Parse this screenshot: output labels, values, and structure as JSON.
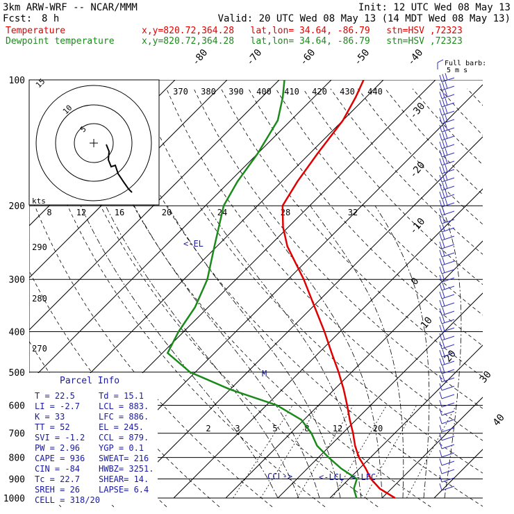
{
  "header": {
    "model": "3km ARW-WRF -- NCAR/MMM",
    "init": "Init: 12 UTC Wed 08 May 13",
    "fcst_label": "Fcst:",
    "fcst_value": "8 h",
    "valid": "Valid: 20 UTC Wed 08 May 13 (14 MDT Wed 08 May 13)",
    "temp_label": "Temperature",
    "temp_info": "x,y=820.72,364.28   lat,lon= 34.64, -86.79   stn=HSV ,72323",
    "dew_label": "Dewpoint temperature",
    "dew_info": "x,y=820.72,364.28   lat,lon= 34.64, -86.79   stn=HSV ,72323"
  },
  "colors": {
    "temperature": "#e00000",
    "dewpoint": "#1a8a1a",
    "text_blue": "#1a1aa0",
    "barbs": "#3030c0",
    "grid": "#000000"
  },
  "barb_legend": {
    "line1": "Full barb:",
    "line2": "5 m s"
  },
  "hodograph": {
    "unit_label": "kts",
    "ring_labels": [
      "15",
      "10",
      "5"
    ],
    "speed_axis_labels": [
      "8",
      "12",
      "16",
      "20",
      "24",
      "28",
      "32"
    ]
  },
  "parcel_info": {
    "title": "Parcel Info",
    "rows": [
      {
        "left": "T   =   22.5",
        "right": "Td  =  15.1"
      },
      {
        "left": "LI  =   -2.7",
        "right": "LCL =  883."
      },
      {
        "left": "K   =     33",
        "right": "LFC =  886."
      },
      {
        "left": "TT  =     52",
        "right": "EL  =  245."
      },
      {
        "left": "SVI =   -1.2",
        "right": "CCL =  879."
      },
      {
        "left": "PW  =   2.96",
        "right": "YGP =   0.1"
      },
      {
        "left": "CAPE =   936",
        "right": "SWEAT=  216"
      },
      {
        "left": "CIN  =   -84",
        "right": "HWBZ= 3251."
      },
      {
        "left": "Tc  =   22.7",
        "right": "SHEAR=  14."
      },
      {
        "left": "SREH =    26",
        "right": "LAPSE=  6.4"
      },
      {
        "left": "CELL = 318/20",
        "right": ""
      }
    ]
  },
  "chart_data": {
    "type": "line",
    "chart_kind": "skew-T log-p diagram",
    "y_axis": {
      "quantity": "pressure",
      "scale": "log",
      "range": [
        1000,
        100
      ],
      "tick_labels": [
        "100",
        "200",
        "300",
        "400",
        "500",
        "600",
        "700",
        "800",
        "900",
        "1000"
      ]
    },
    "isotherm_labels": [
      "-80",
      "-70",
      "-60",
      "-50",
      "-40",
      "-30",
      "-20",
      "-10",
      "0",
      "10",
      "20",
      "30",
      "40"
    ],
    "theta_labels": [
      "370",
      "380",
      "390",
      "400",
      "410",
      "420",
      "430",
      "440"
    ],
    "dry_adiabat_side_labels": [
      "290",
      "280",
      "270"
    ],
    "mixing_ratio_labels": [
      "2",
      "3",
      "5",
      "8",
      "12",
      "20"
    ],
    "series": [
      {
        "name": "Temperature",
        "color": "#e00000",
        "points": [
          {
            "p": 1000,
            "t": 22.5
          },
          {
            "p": 950,
            "t": 17.8
          },
          {
            "p": 900,
            "t": 14.2
          },
          {
            "p": 850,
            "t": 11.2
          },
          {
            "p": 800,
            "t": 7.8
          },
          {
            "p": 750,
            "t": 4.8
          },
          {
            "p": 700,
            "t": 2.0
          },
          {
            "p": 650,
            "t": -1.2
          },
          {
            "p": 600,
            "t": -4.5
          },
          {
            "p": 550,
            "t": -8.2
          },
          {
            "p": 500,
            "t": -12.5
          },
          {
            "p": 450,
            "t": -17.5
          },
          {
            "p": 400,
            "t": -23.0
          },
          {
            "p": 350,
            "t": -29.5
          },
          {
            "p": 300,
            "t": -37.0
          },
          {
            "p": 270,
            "t": -42.5
          },
          {
            "p": 250,
            "t": -46.5
          },
          {
            "p": 225,
            "t": -51.0
          },
          {
            "p": 200,
            "t": -55.2
          },
          {
            "p": 175,
            "t": -57.0
          },
          {
            "p": 150,
            "t": -58.5
          },
          {
            "p": 125,
            "t": -60.0
          },
          {
            "p": 110,
            "t": -62.0
          },
          {
            "p": 100,
            "t": -63.8
          }
        ]
      },
      {
        "name": "Dewpoint temperature",
        "color": "#1a8a1a",
        "points": [
          {
            "p": 1000,
            "t": 15.1
          },
          {
            "p": 950,
            "t": 12.8
          },
          {
            "p": 900,
            "t": 11.5
          },
          {
            "p": 850,
            "t": 6.5
          },
          {
            "p": 800,
            "t": 2.0
          },
          {
            "p": 750,
            "t": -2.5
          },
          {
            "p": 700,
            "t": -6.0
          },
          {
            "p": 650,
            "t": -10.5
          },
          {
            "p": 600,
            "t": -18.0
          },
          {
            "p": 550,
            "t": -30.0
          },
          {
            "p": 500,
            "t": -41.0
          },
          {
            "p": 450,
            "t": -49.0
          },
          {
            "p": 400,
            "t": -51.0
          },
          {
            "p": 350,
            "t": -52.5
          },
          {
            "p": 300,
            "t": -55.5
          },
          {
            "p": 250,
            "t": -60.5
          },
          {
            "p": 200,
            "t": -66.5
          },
          {
            "p": 175,
            "t": -68.5
          },
          {
            "p": 150,
            "t": -70.0
          },
          {
            "p": 125,
            "t": -72.5
          },
          {
            "p": 110,
            "t": -76.0
          },
          {
            "p": 100,
            "t": -79.0
          }
        ]
      }
    ],
    "annotations": [
      {
        "text": "<-EL",
        "p": 245
      },
      {
        "text": "CCL->",
        "p": 879
      },
      {
        "text": "<-LCL",
        "p": 883
      },
      {
        "text": "<-LFC",
        "p": 886
      },
      {
        "text": "M",
        "p": 500
      }
    ],
    "wind_barbs": "right-hand column, 5 m s full barb",
    "grid": true
  }
}
